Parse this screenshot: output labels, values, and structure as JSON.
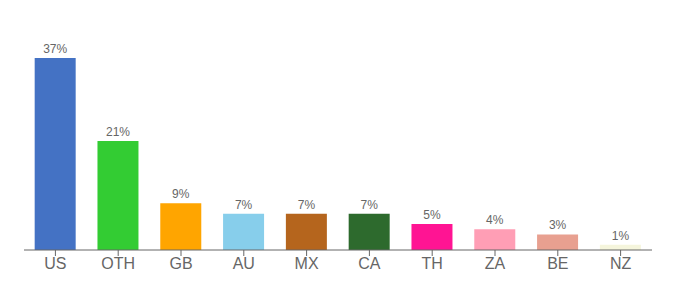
{
  "chart_data": {
    "type": "bar",
    "categories": [
      "US",
      "OTH",
      "GB",
      "AU",
      "MX",
      "CA",
      "TH",
      "ZA",
      "BE",
      "NZ"
    ],
    "values": [
      37,
      21,
      9,
      7,
      7,
      7,
      5,
      4,
      3,
      1
    ],
    "value_labels": [
      "37%",
      "21%",
      "9%",
      "7%",
      "7%",
      "7%",
      "5%",
      "4%",
      "3%",
      "1%"
    ],
    "colors": [
      "#4472C4",
      "#33CC33",
      "#FFA500",
      "#87CEEB",
      "#B5651D",
      "#2D6A2D",
      "#FF1493",
      "#FF9EB5",
      "#E8A090",
      "#F5F5DC"
    ],
    "ylim": [
      0,
      42
    ],
    "grid": false,
    "data_labels": true,
    "tick_labels": "x"
  }
}
